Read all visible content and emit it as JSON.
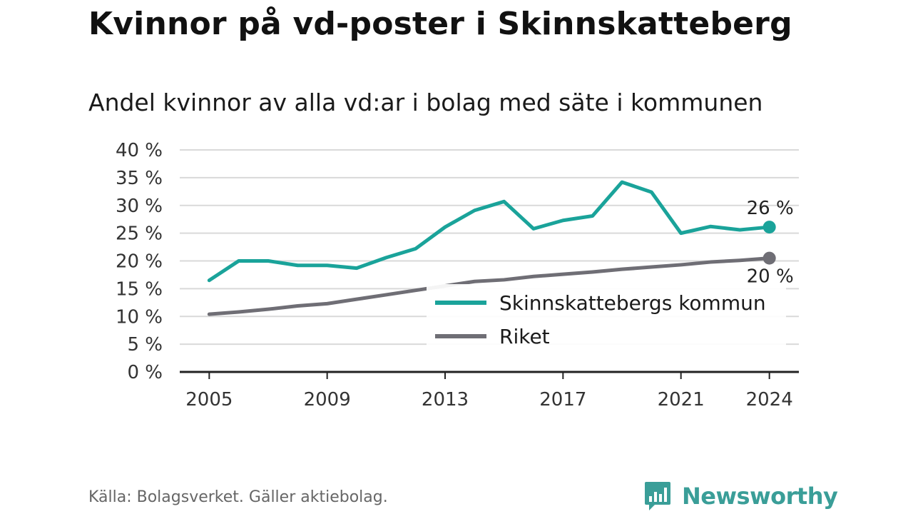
{
  "title": "Kvinnor på vd-poster i Skinnskatteberg",
  "subtitle": "Andel kvinnor av alla vd:ar i bolag med säte i kommunen",
  "source": "Källa: Bolagsverket. Gäller aktiebolag.",
  "logo": {
    "text": "Newsworthy",
    "icon": "newsworthy-logo-icon",
    "color": "#3a9e98"
  },
  "chart_data": {
    "type": "line",
    "x": [
      2005,
      2006,
      2007,
      2008,
      2009,
      2010,
      2011,
      2012,
      2013,
      2014,
      2015,
      2016,
      2017,
      2018,
      2019,
      2020,
      2021,
      2022,
      2023,
      2024
    ],
    "xticks": [
      2005,
      2009,
      2013,
      2017,
      2021,
      2024
    ],
    "xtick_labels": [
      "2005",
      "2009",
      "2013",
      "2017",
      "2021",
      "2024"
    ],
    "ylim": [
      0,
      40
    ],
    "yticks": [
      0,
      5,
      10,
      15,
      20,
      25,
      30,
      35,
      40
    ],
    "ytick_labels": [
      "0 %",
      "5 %",
      "10 %",
      "15 %",
      "20 %",
      "25 %",
      "30 %",
      "35 %",
      "40 %"
    ],
    "grid": true,
    "legend_position": "bottom-right",
    "series": [
      {
        "name": "Skinnskattebergs kommun",
        "color": "#1aa39a",
        "values": [
          16.5,
          20.0,
          20.0,
          19.2,
          19.2,
          18.7,
          20.6,
          22.2,
          26.1,
          29.1,
          30.7,
          25.8,
          27.3,
          28.1,
          34.2,
          32.4,
          25.0,
          26.2,
          25.6,
          26.1
        ],
        "end_label": "26 %"
      },
      {
        "name": "Riket",
        "color": "#6f6e75",
        "values": [
          10.4,
          10.8,
          11.3,
          11.9,
          12.3,
          13.1,
          13.9,
          14.7,
          15.5,
          16.3,
          16.6,
          17.2,
          17.6,
          18.0,
          18.5,
          18.9,
          19.3,
          19.8,
          20.1,
          20.5
        ],
        "end_label": "20 %"
      }
    ]
  }
}
